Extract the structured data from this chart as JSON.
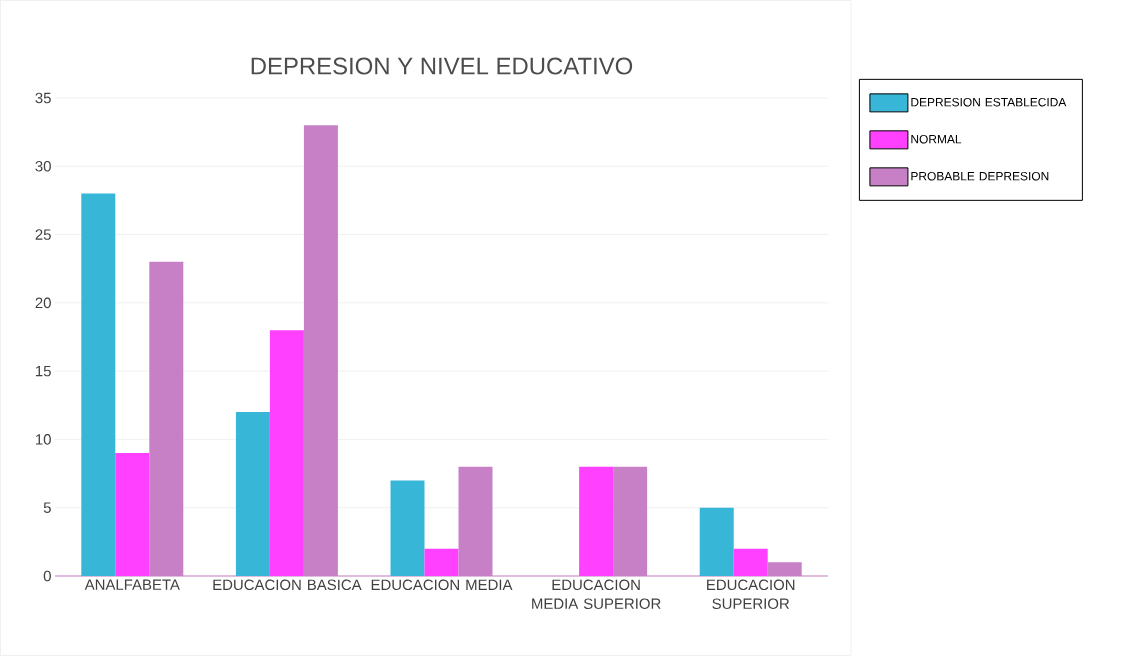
{
  "chart_data": {
    "type": "bar",
    "title": "DEPRESION Y NIVEL EDUCATIVO",
    "categories": [
      "ANALFABETA",
      "EDUCACION BASICA",
      "EDUCACION MEDIA",
      "EDUCACION MEDIA SUPERIOR",
      "EDUCACION SUPERIOR"
    ],
    "series": [
      {
        "name": "DEPRESION ESTABLECIDA",
        "color": "#38b6d8",
        "values": [
          28,
          12,
          7,
          0,
          5
        ]
      },
      {
        "name": "NORMAL",
        "color": "#ff40ff",
        "values": [
          9,
          18,
          2,
          8,
          2
        ]
      },
      {
        "name": "PROBABLE DEPRESION",
        "color": "#c780c6",
        "values": [
          23,
          33,
          8,
          8,
          1
        ]
      }
    ],
    "ylim": [
      0,
      35
    ],
    "yticks": [
      0,
      5,
      10,
      15,
      20,
      25,
      30,
      35
    ],
    "grid": "y",
    "legend": "right"
  }
}
